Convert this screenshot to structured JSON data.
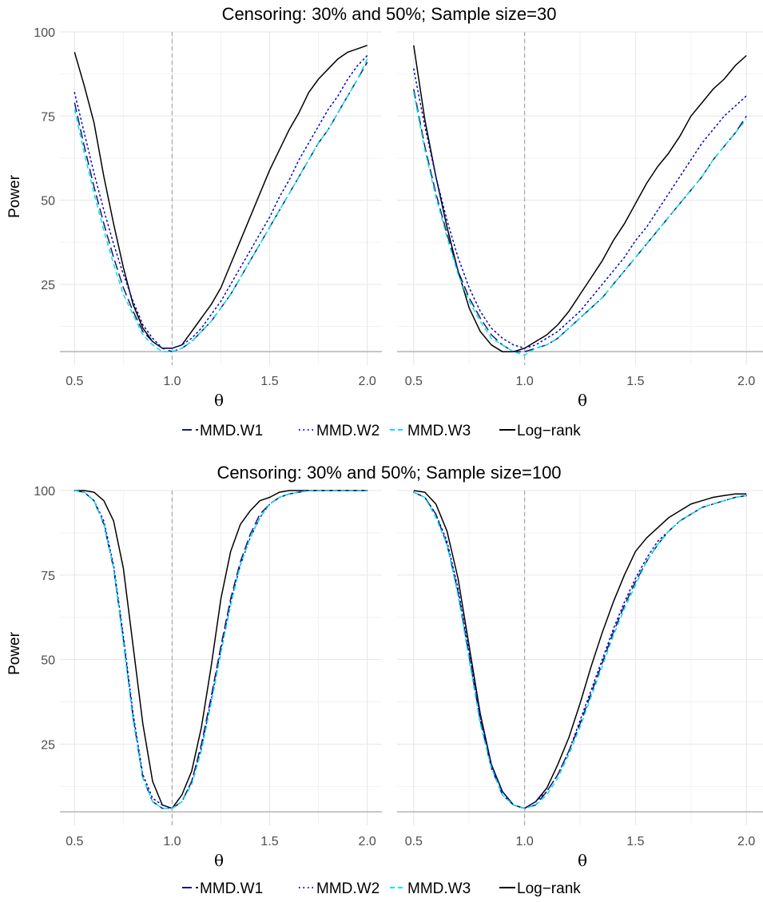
{
  "figure": {
    "legend_items": [
      {
        "label": "MMD.W1",
        "color": "#191970",
        "dash": "longdash"
      },
      {
        "label": "MMD.W2",
        "color": "#0000cd",
        "dash": "dotted"
      },
      {
        "label": "MMD.W3",
        "color": "#00e5ee",
        "dash": "dashed"
      },
      {
        "label": "Log−rank",
        "color": "#000000",
        "dash": "solid"
      }
    ]
  },
  "chart_data": [
    {
      "type": "line",
      "title": "Censoring: 30% and 50%; Sample size=30",
      "xlabel": "θ",
      "ylabel": "Power",
      "xlim": [
        0.425,
        2.075
      ],
      "ylim": [
        1,
        100
      ],
      "xticks": [
        "0.5",
        "1.0",
        "1.5",
        "2.0"
      ],
      "yticks": [
        "25",
        "50",
        "75",
        "100"
      ],
      "reference_x": 1.0,
      "reference_y": 5,
      "grid": true,
      "x": [
        0.5,
        0.55,
        0.6,
        0.65,
        0.7,
        0.75,
        0.8,
        0.85,
        0.9,
        0.95,
        1.0,
        1.05,
        1.1,
        1.15,
        1.2,
        1.25,
        1.3,
        1.35,
        1.4,
        1.45,
        1.5,
        1.55,
        1.6,
        1.65,
        1.7,
        1.75,
        1.8,
        1.85,
        1.9,
        1.95,
        2.0
      ],
      "series": [
        {
          "name": "MMD.W1",
          "values": [
            79,
            66,
            54,
            43,
            33,
            24,
            17,
            11,
            8,
            6,
            5,
            6,
            8,
            11,
            14,
            18,
            22,
            27,
            32,
            37,
            42,
            47,
            52,
            57,
            62,
            67,
            71,
            76,
            81,
            86,
            91
          ]
        },
        {
          "name": "MMD.W2",
          "values": [
            82,
            70,
            58,
            47,
            37,
            28,
            20,
            13,
            9,
            6,
            6,
            7,
            9,
            12,
            16,
            20,
            25,
            30,
            35,
            40,
            45,
            51,
            56,
            62,
            67,
            72,
            77,
            81,
            86,
            90,
            93
          ]
        },
        {
          "name": "MMD.W3",
          "values": [
            77,
            64,
            52,
            41,
            31,
            22,
            16,
            10,
            7,
            5,
            5,
            6,
            8,
            11,
            14,
            18,
            22,
            27,
            32,
            37,
            42,
            47,
            52,
            57,
            62,
            67,
            71,
            76,
            81,
            86,
            92
          ]
        },
        {
          "name": "Log−rank",
          "values": [
            94,
            84,
            73,
            57,
            43,
            30,
            19,
            12,
            8,
            6,
            6,
            7,
            11,
            15,
            19,
            24,
            31,
            38,
            45,
            52,
            59,
            65,
            71,
            76,
            82,
            86,
            89,
            92,
            94,
            95,
            96
          ]
        }
      ]
    },
    {
      "type": "line",
      "xlabel": "θ",
      "xlim": [
        0.425,
        2.075
      ],
      "ylim": [
        1,
        100
      ],
      "xticks": [
        "0.5",
        "1.0",
        "1.5",
        "2.0"
      ],
      "reference_x": 1.0,
      "reference_y": 5,
      "grid": true,
      "x": [
        0.5,
        0.55,
        0.6,
        0.65,
        0.7,
        0.75,
        0.8,
        0.85,
        0.9,
        0.95,
        1.0,
        1.05,
        1.1,
        1.15,
        1.2,
        1.25,
        1.3,
        1.35,
        1.4,
        1.45,
        1.5,
        1.55,
        1.6,
        1.65,
        1.7,
        1.75,
        1.8,
        1.85,
        1.9,
        1.95,
        2.0
      ],
      "series": [
        {
          "name": "MMD.W1",
          "values": [
            83,
            66,
            52,
            40,
            29,
            21,
            15,
            10,
            7,
            5,
            5,
            6,
            7,
            9,
            12,
            15,
            18,
            21,
            25,
            29,
            33,
            37,
            41,
            45,
            49,
            53,
            57,
            62,
            66,
            70,
            75
          ]
        },
        {
          "name": "MMD.W2",
          "values": [
            89,
            72,
            57,
            44,
            33,
            24,
            17,
            12,
            9,
            7,
            6,
            7,
            9,
            11,
            14,
            17,
            21,
            25,
            29,
            33,
            38,
            42,
            47,
            52,
            57,
            62,
            67,
            71,
            75,
            78,
            81
          ]
        },
        {
          "name": "MMD.W3",
          "values": [
            82,
            65,
            51,
            39,
            28,
            20,
            14,
            9,
            7,
            5,
            4,
            6,
            7,
            9,
            12,
            15,
            18,
            21,
            25,
            29,
            33,
            37,
            41,
            45,
            49,
            53,
            57,
            62,
            66,
            70,
            74
          ]
        },
        {
          "name": "Log−rank",
          "values": [
            96,
            74,
            57,
            42,
            29,
            18,
            11,
            7,
            5,
            5,
            6,
            8,
            10,
            13,
            17,
            22,
            27,
            32,
            38,
            43,
            49,
            55,
            60,
            64,
            69,
            75,
            79,
            83,
            86,
            90,
            93
          ]
        }
      ]
    },
    {
      "type": "line",
      "title": "Censoring: 30% and 50%; Sample size=100",
      "xlabel": "θ",
      "ylabel": "Power",
      "xlim": [
        0.425,
        2.075
      ],
      "ylim": [
        1,
        100
      ],
      "xticks": [
        "0.5",
        "1.0",
        "1.5",
        "2.0"
      ],
      "yticks": [
        "25",
        "50",
        "75",
        "100"
      ],
      "reference_x": 1.0,
      "reference_y": 5,
      "grid": true,
      "x": [
        0.5,
        0.55,
        0.6,
        0.65,
        0.7,
        0.75,
        0.8,
        0.85,
        0.9,
        0.95,
        1.0,
        1.05,
        1.1,
        1.15,
        1.2,
        1.25,
        1.3,
        1.35,
        1.4,
        1.45,
        1.5,
        1.55,
        1.6,
        1.65,
        1.7,
        1.75,
        1.8,
        1.85,
        1.9,
        1.95,
        2.0
      ],
      "series": [
        {
          "name": "MMD.W1",
          "values": [
            100,
            99.5,
            97,
            90,
            77,
            56,
            33,
            15,
            8,
            6,
            6,
            8,
            14,
            25,
            39,
            54,
            68,
            79,
            87,
            93,
            96,
            98,
            99,
            99.5,
            100,
            100,
            100,
            100,
            100,
            100,
            100
          ]
        },
        {
          "name": "MMD.W2",
          "values": [
            100,
            99.5,
            97,
            91,
            78,
            57,
            34,
            16,
            9,
            7,
            6,
            8,
            14,
            24,
            38,
            53,
            67,
            78,
            86,
            92,
            96,
            98,
            99,
            99.5,
            100,
            100,
            100,
            100,
            100,
            100,
            100
          ]
        },
        {
          "name": "MMD.W3",
          "values": [
            100,
            99.5,
            97,
            90,
            77,
            55,
            32,
            15,
            8,
            6,
            6,
            8,
            13,
            23,
            37,
            52,
            66,
            78,
            86,
            92,
            96,
            98,
            99,
            99.5,
            100,
            100,
            100,
            100,
            100,
            100,
            100
          ]
        },
        {
          "name": "Log−rank",
          "values": [
            100,
            100,
            99.5,
            97,
            91,
            77,
            54,
            31,
            14,
            7,
            6,
            10,
            17,
            30,
            48,
            68,
            82,
            90,
            94,
            97,
            98,
            99.5,
            100,
            100,
            100,
            100,
            100,
            100,
            100,
            100,
            100
          ]
        }
      ]
    },
    {
      "type": "line",
      "xlabel": "θ",
      "xlim": [
        0.425,
        2.075
      ],
      "ylim": [
        1,
        100
      ],
      "xticks": [
        "0.5",
        "1.0",
        "1.5",
        "2.0"
      ],
      "reference_x": 1.0,
      "reference_y": 5,
      "grid": true,
      "x": [
        0.5,
        0.55,
        0.6,
        0.65,
        0.7,
        0.75,
        0.8,
        0.85,
        0.9,
        0.95,
        1.0,
        1.05,
        1.1,
        1.15,
        1.2,
        1.25,
        1.3,
        1.35,
        1.4,
        1.45,
        1.5,
        1.55,
        1.6,
        1.65,
        1.7,
        1.75,
        1.8,
        1.85,
        1.9,
        1.95,
        2.0
      ],
      "series": [
        {
          "name": "MMD.W1",
          "values": [
            99.5,
            98,
            93,
            84,
            70,
            51,
            32,
            18,
            10,
            7,
            6,
            7,
            11,
            16,
            23,
            31,
            40,
            49,
            58,
            66,
            73,
            79,
            84,
            88,
            91,
            93,
            95,
            96,
            97,
            98,
            98.5
          ]
        },
        {
          "name": "MMD.W2",
          "values": [
            99.5,
            98,
            93,
            85,
            71,
            52,
            33,
            19,
            11,
            7,
            6,
            8,
            11,
            16,
            23,
            32,
            41,
            50,
            59,
            67,
            74,
            80,
            85,
            88,
            91,
            93,
            95,
            96,
            97,
            98,
            98.5
          ]
        },
        {
          "name": "MMD.W3",
          "values": [
            99.5,
            98,
            92,
            84,
            69,
            50,
            31,
            18,
            10,
            7,
            6,
            7,
            10,
            15,
            22,
            30,
            39,
            48,
            57,
            65,
            72,
            79,
            84,
            88,
            91,
            93,
            95,
            96,
            97,
            98,
            98.5
          ]
        },
        {
          "name": "Log−rank",
          "values": [
            100,
            99.5,
            96,
            88,
            74,
            54,
            34,
            19,
            11,
            7,
            6,
            8,
            12,
            19,
            27,
            37,
            48,
            58,
            67,
            75,
            82,
            86,
            89,
            92,
            94,
            96,
            97,
            98,
            98.5,
            99,
            99
          ]
        }
      ]
    }
  ]
}
